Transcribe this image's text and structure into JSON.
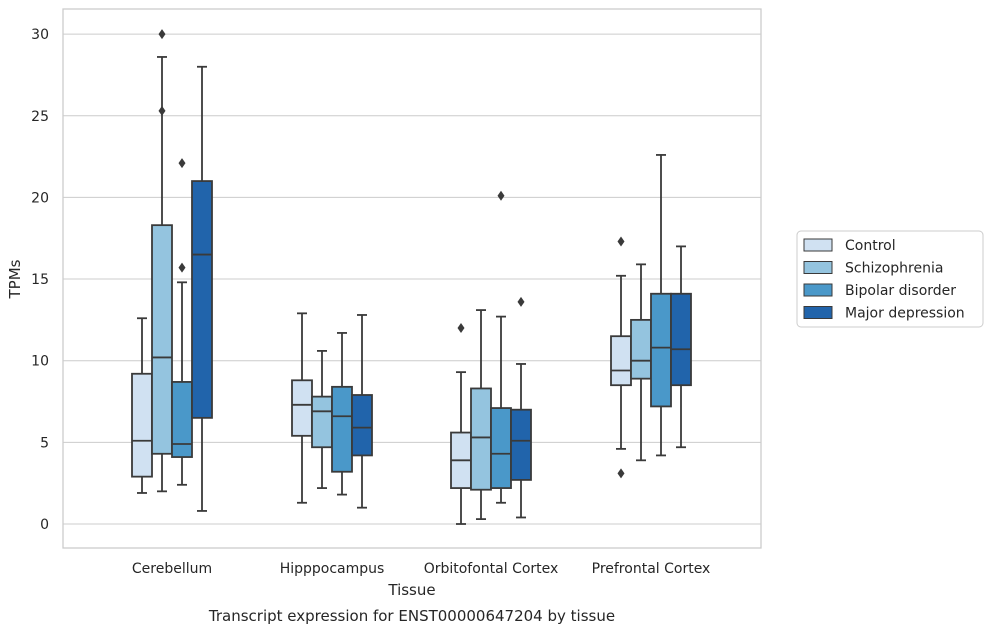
{
  "chart_data": {
    "type": "box",
    "title": "",
    "caption": "Transcript expression for ENST00000647204 by tissue",
    "xlabel": "Tissue",
    "ylabel": "TPMs",
    "ylim": [
      -1.2,
      31.5
    ],
    "yticks": [
      0,
      5,
      10,
      15,
      20,
      25,
      30
    ],
    "grid": true,
    "legend_position": "right",
    "categories": [
      "Cerebellum",
      "Hipppocampus",
      "Orbitofontal Cortex",
      "Prefrontal Cortex"
    ],
    "series": [
      {
        "name": "Control",
        "color": "#d0e1f2",
        "boxes": [
          {
            "whisker_low": 1.9,
            "q1": 2.9,
            "median": 5.1,
            "q3": 9.2,
            "whisker_high": 12.6,
            "outliers": []
          },
          {
            "whisker_low": 1.3,
            "q1": 5.4,
            "median": 7.3,
            "q3": 8.8,
            "whisker_high": 12.9,
            "outliers": []
          },
          {
            "whisker_low": 0.0,
            "q1": 2.2,
            "median": 3.9,
            "q3": 5.6,
            "whisker_high": 9.3,
            "outliers": [
              12.0
            ]
          },
          {
            "whisker_low": 4.6,
            "q1": 8.5,
            "median": 9.4,
            "q3": 11.5,
            "whisker_high": 15.2,
            "outliers": [
              17.3,
              3.1
            ]
          }
        ]
      },
      {
        "name": "Schizophrenia",
        "color": "#94c4df",
        "boxes": [
          {
            "whisker_low": 2.0,
            "q1": 4.3,
            "median": 10.2,
            "q3": 18.3,
            "whisker_high": 28.6,
            "outliers": [
              30.0,
              25.3
            ]
          },
          {
            "whisker_low": 2.2,
            "q1": 4.7,
            "median": 6.9,
            "q3": 7.8,
            "whisker_high": 10.6,
            "outliers": []
          },
          {
            "whisker_low": 0.3,
            "q1": 2.1,
            "median": 5.3,
            "q3": 8.3,
            "whisker_high": 13.1,
            "outliers": []
          },
          {
            "whisker_low": 3.9,
            "q1": 8.9,
            "median": 10.0,
            "q3": 12.5,
            "whisker_high": 15.9,
            "outliers": []
          }
        ]
      },
      {
        "name": "Bipolar disorder",
        "color": "#4a98c9",
        "boxes": [
          {
            "whisker_low": 2.4,
            "q1": 4.1,
            "median": 4.9,
            "q3": 8.7,
            "whisker_high": 14.8,
            "outliers": [
              22.1,
              15.7
            ]
          },
          {
            "whisker_low": 1.8,
            "q1": 3.2,
            "median": 6.6,
            "q3": 8.4,
            "whisker_high": 11.7,
            "outliers": []
          },
          {
            "whisker_low": 1.3,
            "q1": 2.2,
            "median": 4.3,
            "q3": 7.1,
            "whisker_high": 12.7,
            "outliers": [
              20.1
            ]
          },
          {
            "whisker_low": 4.2,
            "q1": 7.2,
            "median": 10.8,
            "q3": 14.1,
            "whisker_high": 22.6,
            "outliers": []
          }
        ]
      },
      {
        "name": "Major depression",
        "color": "#2164ab",
        "boxes": [
          {
            "whisker_low": 0.8,
            "q1": 6.5,
            "median": 16.5,
            "q3": 21.0,
            "whisker_high": 28.0,
            "outliers": []
          },
          {
            "whisker_low": 1.0,
            "q1": 4.2,
            "median": 5.9,
            "q3": 7.9,
            "whisker_high": 12.8,
            "outliers": []
          },
          {
            "whisker_low": 0.4,
            "q1": 2.7,
            "median": 5.1,
            "q3": 7.0,
            "whisker_high": 9.8,
            "outliers": [
              13.6
            ]
          },
          {
            "whisker_low": 4.7,
            "q1": 8.5,
            "median": 10.7,
            "q3": 14.1,
            "whisker_high": 17.0,
            "outliers": []
          }
        ]
      }
    ],
    "colors": {
      "grid": "#cccccc",
      "frame": "#cccccc",
      "box_edge": "#3a3a3a",
      "text": "#262626"
    }
  }
}
